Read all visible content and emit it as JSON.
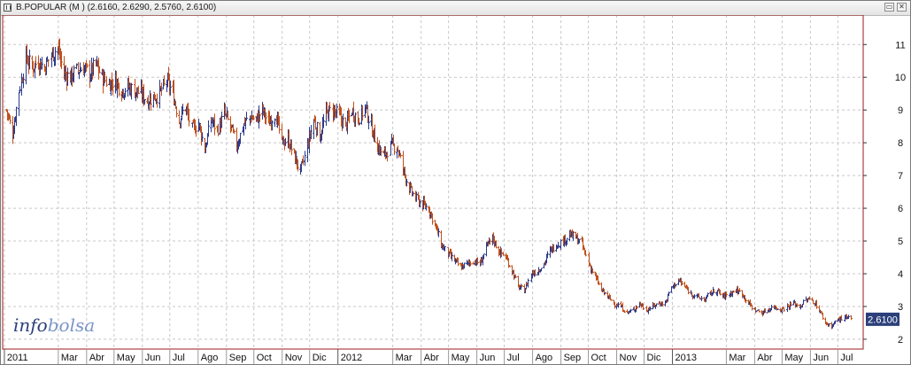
{
  "window": {
    "title": "B.POPULAR (M ) (2.6160, 2.6290, 2.5760, 2.6100)",
    "restore_glyph": "▭",
    "close_glyph": "✕"
  },
  "logo": {
    "part1": "info",
    "part2": "bolsa"
  },
  "last_price_label": "2.6100",
  "colors": {
    "up": "#2a3a8c",
    "down": "#c0501c",
    "grid": "#c8c8c8",
    "frame": "#9b1b1b",
    "price_tag_bg": "#2b3f7a"
  },
  "chart_data": {
    "type": "ohlc",
    "title": "B.POPULAR (M ) (2.6160, 2.6290, 2.5760, 2.6100)",
    "last": {
      "open": 2.616,
      "high": 2.629,
      "low": 2.576,
      "close": 2.61
    },
    "ylim": [
      1.7,
      11.9
    ],
    "y_ticks": [
      2,
      3,
      4,
      5,
      6,
      7,
      8,
      9,
      10,
      11
    ],
    "grid": true,
    "x_labels": [
      {
        "label": "2011",
        "year": true
      },
      {
        "label": "Mar"
      },
      {
        "label": "Abr"
      },
      {
        "label": "May"
      },
      {
        "label": "Jun"
      },
      {
        "label": "Jul"
      },
      {
        "label": "Ago"
      },
      {
        "label": "Sep"
      },
      {
        "label": "Oct"
      },
      {
        "label": "Nov"
      },
      {
        "label": "Dic"
      },
      {
        "label": "2012",
        "year": true
      },
      {
        "label": "Mar"
      },
      {
        "label": "Abr"
      },
      {
        "label": "May"
      },
      {
        "label": "Jun"
      },
      {
        "label": "Jul"
      },
      {
        "label": "Ago"
      },
      {
        "label": "Sep"
      },
      {
        "label": "Oct"
      },
      {
        "label": "Nov"
      },
      {
        "label": "Dic"
      },
      {
        "label": "2013",
        "year": true
      },
      {
        "label": "Mar"
      },
      {
        "label": "Abr"
      },
      {
        "label": "May"
      },
      {
        "label": "Jun"
      },
      {
        "label": "Jul"
      }
    ],
    "series": [
      {
        "name": "B.POPULAR",
        "close_path": [
          [
            "2011-01-03",
            9.0
          ],
          [
            "2011-01-10",
            8.3
          ],
          [
            "2011-01-17",
            9.6
          ],
          [
            "2011-01-24",
            10.6
          ],
          [
            "2011-01-31",
            10.3
          ],
          [
            "2011-02-07",
            10.5
          ],
          [
            "2011-02-14",
            10.3
          ],
          [
            "2011-02-21",
            10.7
          ],
          [
            "2011-02-28",
            10.9
          ],
          [
            "2011-03-07",
            10.1
          ],
          [
            "2011-03-14",
            10.0
          ],
          [
            "2011-03-21",
            10.2
          ],
          [
            "2011-03-28",
            10.3
          ],
          [
            "2011-04-04",
            10.1
          ],
          [
            "2011-04-11",
            10.4
          ],
          [
            "2011-04-18",
            10.0
          ],
          [
            "2011-04-25",
            9.8
          ],
          [
            "2011-05-02",
            9.9
          ],
          [
            "2011-05-09",
            9.6
          ],
          [
            "2011-05-16",
            9.7
          ],
          [
            "2011-05-23",
            9.6
          ],
          [
            "2011-05-30",
            9.5
          ],
          [
            "2011-06-06",
            9.3
          ],
          [
            "2011-06-13",
            9.4
          ],
          [
            "2011-06-20",
            9.5
          ],
          [
            "2011-06-27",
            9.9
          ],
          [
            "2011-07-04",
            9.5
          ],
          [
            "2011-07-11",
            8.7
          ],
          [
            "2011-07-18",
            9.1
          ],
          [
            "2011-07-25",
            8.4
          ],
          [
            "2011-08-01",
            8.6
          ],
          [
            "2011-08-08",
            7.8
          ],
          [
            "2011-08-15",
            8.7
          ],
          [
            "2011-08-22",
            8.4
          ],
          [
            "2011-08-29",
            8.9
          ],
          [
            "2011-09-05",
            8.5
          ],
          [
            "2011-09-12",
            7.9
          ],
          [
            "2011-09-19",
            8.5
          ],
          [
            "2011-09-26",
            8.8
          ],
          [
            "2011-10-03",
            8.7
          ],
          [
            "2011-10-10",
            9.0
          ],
          [
            "2011-10-17",
            8.6
          ],
          [
            "2011-10-24",
            8.9
          ],
          [
            "2011-10-31",
            8.0
          ],
          [
            "2011-11-07",
            8.1
          ],
          [
            "2011-11-14",
            7.6
          ],
          [
            "2011-11-21",
            7.1
          ],
          [
            "2011-11-28",
            7.9
          ],
          [
            "2011-12-05",
            8.7
          ],
          [
            "2011-12-12",
            8.2
          ],
          [
            "2011-12-19",
            8.9
          ],
          [
            "2011-12-26",
            9.0
          ],
          [
            "2012-01-02",
            8.8
          ],
          [
            "2012-01-09",
            8.5
          ],
          [
            "2012-01-16",
            9.0
          ],
          [
            "2012-01-23",
            8.7
          ],
          [
            "2012-01-30",
            9.1
          ],
          [
            "2012-02-06",
            8.5
          ],
          [
            "2012-02-13",
            7.9
          ],
          [
            "2012-02-20",
            7.6
          ],
          [
            "2012-02-27",
            7.9
          ],
          [
            "2012-03-05",
            7.9
          ],
          [
            "2012-03-12",
            7.2
          ],
          [
            "2012-03-19",
            6.6
          ],
          [
            "2012-03-26",
            6.3
          ],
          [
            "2012-04-02",
            6.1
          ],
          [
            "2012-04-09",
            6.0
          ],
          [
            "2012-04-16",
            5.5
          ],
          [
            "2012-04-23",
            4.9
          ],
          [
            "2012-04-30",
            4.6
          ],
          [
            "2012-05-07",
            4.4
          ],
          [
            "2012-05-14",
            4.2
          ],
          [
            "2012-05-21",
            4.3
          ],
          [
            "2012-05-28",
            4.4
          ],
          [
            "2012-06-04",
            4.3
          ],
          [
            "2012-06-11",
            4.8
          ],
          [
            "2012-06-18",
            5.1
          ],
          [
            "2012-06-25",
            4.7
          ],
          [
            "2012-07-02",
            4.5
          ],
          [
            "2012-07-09",
            4.1
          ],
          [
            "2012-07-16",
            3.6
          ],
          [
            "2012-07-23",
            3.5
          ],
          [
            "2012-07-30",
            4.0
          ],
          [
            "2012-08-06",
            4.1
          ],
          [
            "2012-08-13",
            4.3
          ],
          [
            "2012-08-20",
            4.7
          ],
          [
            "2012-08-27",
            4.9
          ],
          [
            "2012-09-03",
            5.0
          ],
          [
            "2012-09-10",
            5.2
          ],
          [
            "2012-09-17",
            5.1
          ],
          [
            "2012-09-24",
            4.9
          ],
          [
            "2012-10-01",
            4.3
          ],
          [
            "2012-10-08",
            3.9
          ],
          [
            "2012-10-15",
            3.5
          ],
          [
            "2012-10-22",
            3.3
          ],
          [
            "2012-10-29",
            3.1
          ],
          [
            "2012-11-05",
            3.0
          ],
          [
            "2012-11-12",
            2.8
          ],
          [
            "2012-11-19",
            2.9
          ],
          [
            "2012-11-26",
            3.1
          ],
          [
            "2012-12-03",
            2.9
          ],
          [
            "2012-12-10",
            3.0
          ],
          [
            "2012-12-17",
            3.1
          ],
          [
            "2012-12-24",
            3.1
          ],
          [
            "2012-12-31",
            3.6
          ],
          [
            "2013-01-07",
            3.8
          ],
          [
            "2013-01-14",
            3.6
          ],
          [
            "2013-01-21",
            3.4
          ],
          [
            "2013-01-28",
            3.3
          ],
          [
            "2013-02-04",
            3.2
          ],
          [
            "2013-02-11",
            3.4
          ],
          [
            "2013-02-18",
            3.5
          ],
          [
            "2013-02-25",
            3.3
          ],
          [
            "2013-03-04",
            3.4
          ],
          [
            "2013-03-11",
            3.5
          ],
          [
            "2013-03-18",
            3.4
          ],
          [
            "2013-03-25",
            3.1
          ],
          [
            "2013-04-01",
            2.9
          ],
          [
            "2013-04-08",
            2.8
          ],
          [
            "2013-04-15",
            2.9
          ],
          [
            "2013-04-22",
            3.0
          ],
          [
            "2013-04-29",
            2.9
          ],
          [
            "2013-05-06",
            3.0
          ],
          [
            "2013-05-13",
            3.1
          ],
          [
            "2013-05-20",
            3.0
          ],
          [
            "2013-05-27",
            3.2
          ],
          [
            "2013-06-03",
            3.2
          ],
          [
            "2013-06-10",
            2.9
          ],
          [
            "2013-06-17",
            2.5
          ],
          [
            "2013-06-24",
            2.4
          ],
          [
            "2013-07-01",
            2.6
          ],
          [
            "2013-07-08",
            2.65
          ],
          [
            "2013-07-15",
            2.61
          ]
        ]
      }
    ]
  }
}
